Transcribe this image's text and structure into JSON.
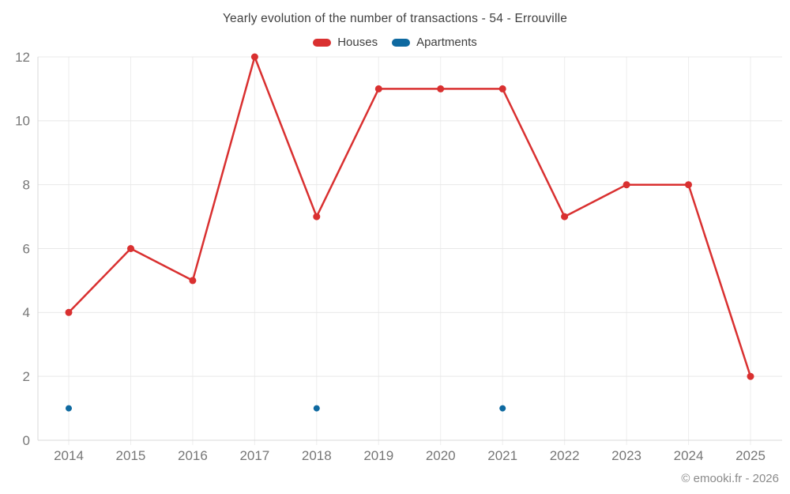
{
  "title": "Yearly evolution of the number of transactions - 54 - Errouville",
  "legend": [
    {
      "label": "Houses",
      "color": "#d93030"
    },
    {
      "label": "Apartments",
      "color": "#0e69a0"
    }
  ],
  "copyright": "© emooki.fr - 2026",
  "colors": {
    "houses": "#d93030",
    "apartments": "#0e69a0",
    "gridline": "#e8e8e8",
    "axis_line": "#d8d8d8",
    "tick_label": "#767676",
    "title_text": "#3f3f3f",
    "background": "#ffffff"
  },
  "chart_data": {
    "type": "line",
    "title": "Yearly evolution of the number of transactions - 54 - Errouville",
    "x": [
      "2014",
      "2015",
      "2016",
      "2017",
      "2018",
      "2019",
      "2020",
      "2021",
      "2022",
      "2023",
      "2024",
      "2025"
    ],
    "series": [
      {
        "name": "Houses",
        "color": "#d93030",
        "draw_line": true,
        "values": [
          4,
          6,
          5,
          12,
          7,
          11,
          11,
          11,
          7,
          8,
          8,
          2
        ]
      },
      {
        "name": "Apartments",
        "color": "#0e69a0",
        "draw_line": false,
        "values": [
          1,
          null,
          null,
          null,
          1,
          null,
          null,
          1,
          null,
          null,
          null,
          null
        ]
      }
    ],
    "xlabel": "",
    "ylabel": "",
    "ylim": [
      0,
      12
    ],
    "yticks": [
      0,
      2,
      4,
      6,
      8,
      10,
      12
    ],
    "grid": true,
    "legend_position": "top"
  }
}
